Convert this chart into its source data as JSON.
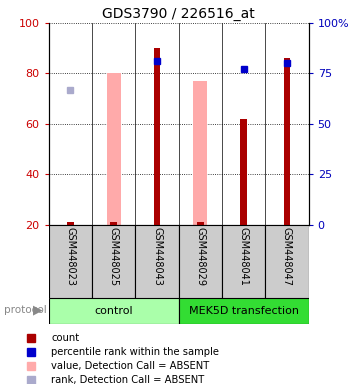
{
  "title": "GDS3790 / 226516_at",
  "samples": [
    "GSM448023",
    "GSM448025",
    "GSM448043",
    "GSM448029",
    "GSM448041",
    "GSM448047"
  ],
  "bar_values_red": [
    21,
    21,
    90,
    21,
    62,
    86
  ],
  "bar_values_pink": [
    null,
    80,
    null,
    77,
    null,
    null
  ],
  "dot_values_blue": [
    null,
    null,
    81,
    null,
    77,
    80
  ],
  "dot_values_lightblue": [
    67,
    null,
    null,
    null,
    null,
    null
  ],
  "bar_color_red": "#aa0000",
  "bar_color_pink": "#ffaaaa",
  "dot_color_blue": "#0000cc",
  "dot_color_lightblue": "#aaaacc",
  "ylim_left": [
    20,
    100
  ],
  "ylim_right": [
    0,
    100
  ],
  "left_ticks": [
    20,
    40,
    60,
    80,
    100
  ],
  "right_ticks": [
    0,
    25,
    50,
    75,
    100
  ],
  "right_tick_labels": [
    "0",
    "25",
    "50",
    "75",
    "100%"
  ],
  "ylabel_left_color": "#cc0000",
  "ylabel_right_color": "#0000bb",
  "title_fontsize": 10,
  "legend_items": [
    {
      "label": "count",
      "color": "#aa0000"
    },
    {
      "label": "percentile rank within the sample",
      "color": "#0000cc"
    },
    {
      "label": "value, Detection Call = ABSENT",
      "color": "#ffaaaa"
    },
    {
      "label": "rank, Detection Call = ABSENT",
      "color": "#aaaacc"
    }
  ],
  "control_color": "#aaffaa",
  "mek_color": "#33dd33",
  "sample_box_color": "#cccccc",
  "pink_bar_width": 0.32,
  "red_bar_width": 0.15
}
